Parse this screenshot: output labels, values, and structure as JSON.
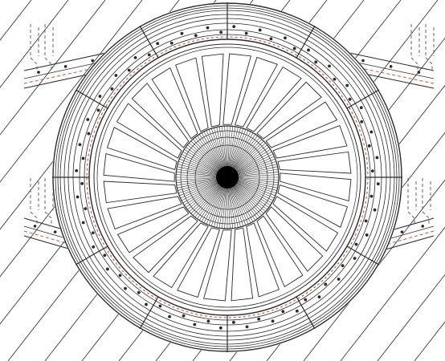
{
  "drawing": {
    "subject": "circular-segmented-vent-ring",
    "colors": {
      "line": "#2a2a2a",
      "thin_line": "#555555",
      "hatch": "#3a3a3a",
      "accent_dashed": "#c8552e",
      "background": "#ffffff",
      "hub_core": "#000000"
    },
    "counts": {
      "ring_segments": 12,
      "radial_blades": 28,
      "hub_spokes": 120,
      "ring_bolts": 72,
      "side_beams": 4
    },
    "features": {
      "outer_ring": true,
      "bolt_circle": true,
      "dashed_accent_ring": true,
      "central_hub": true,
      "background_hatching": true,
      "attached_beams": true,
      "dashed_posts": true
    }
  }
}
